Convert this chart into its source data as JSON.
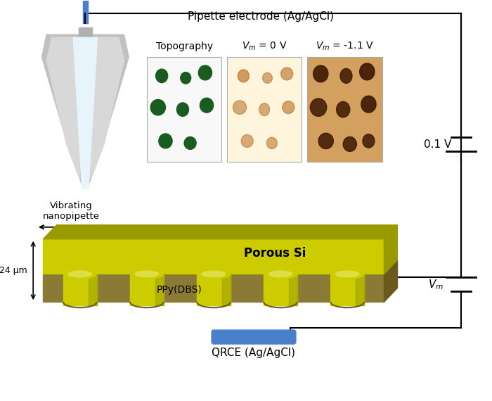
{
  "pipette_label": "Pipette electrode (Ag/AgCl)",
  "vibrating_label": "Vibrating\nnanopipette",
  "topography_label": "Topography",
  "vm0_label": "$V_m$ = 0 V",
  "vm11_label": "$V_m$ = -1.1 V",
  "porous_si_label": "Porous Si",
  "ppy_label": "PPy(DBS)",
  "depth_label": "24 μm",
  "voltage_label": "0.1 V",
  "vm_label": "$V_m$",
  "qrce_label": "QRCE (Ag/AgCl)",
  "bg_color": "#ffffff",
  "si_color": "#cccc00",
  "si_dark": "#999900",
  "ppy_color": "#8b7a35",
  "ppy_dark": "#6a5a20",
  "blue_rod": "#4a7fcc",
  "qrce_blue": "#4a7fcc"
}
